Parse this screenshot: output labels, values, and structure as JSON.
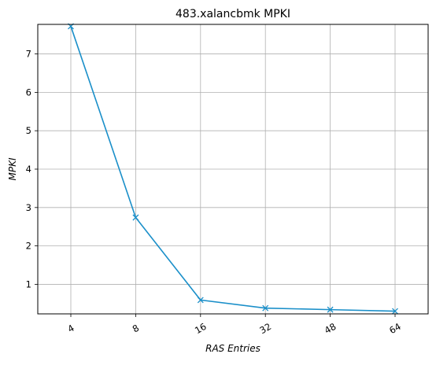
{
  "chart_data": {
    "type": "line",
    "title": "483.xalancbmk MPKI",
    "xlabel": "RAS Entries",
    "ylabel": "MPKI",
    "categories": [
      "4",
      "8",
      "16",
      "32",
      "48",
      "64"
    ],
    "series": [
      {
        "values": [
          7.72,
          2.74,
          0.59,
          0.38,
          0.34,
          0.3
        ],
        "color": "#1a8fc9",
        "marker": "x"
      }
    ],
    "ylim": [
      0.23,
      7.77
    ],
    "yticks": [
      1,
      2,
      3,
      4,
      5,
      6,
      7
    ],
    "xtick_rotation": -30,
    "grid": true,
    "legend": false
  }
}
